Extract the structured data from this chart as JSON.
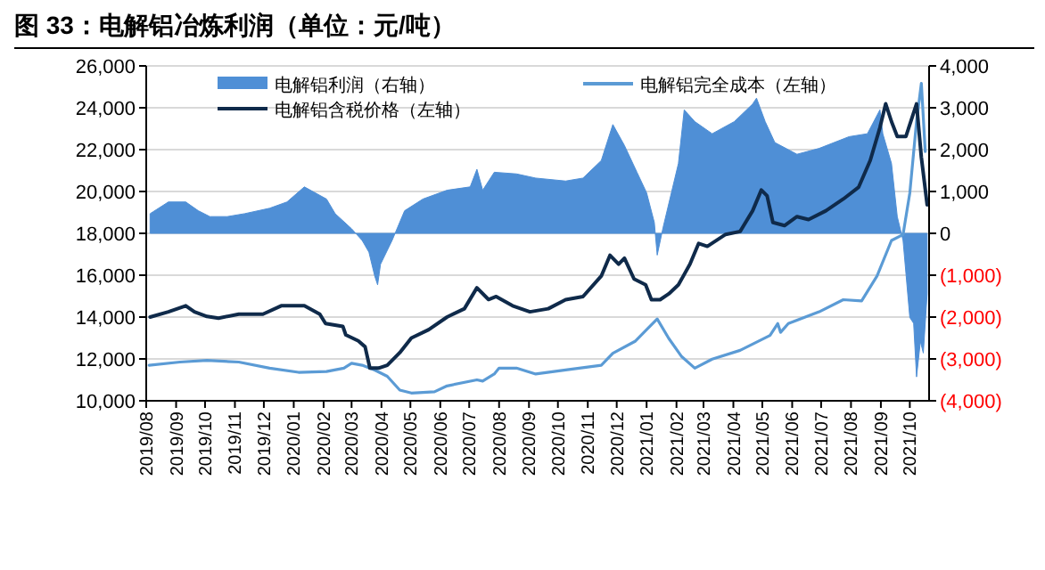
{
  "chart_data": {
    "type": "line",
    "title": "图 33：电解铝冶炼利润（单位：元/吨）",
    "xlim": [
      "2019-08-01",
      "2021-10-21"
    ],
    "xticks": [
      {
        "value": "2019-08",
        "label": "2019/08"
      },
      {
        "value": "2019-09",
        "label": "2019/09"
      },
      {
        "value": "2019-10",
        "label": "2019/10"
      },
      {
        "value": "2019-11",
        "label": "2019/11"
      },
      {
        "value": "2019-12",
        "label": "2019/12"
      },
      {
        "value": "2020-01",
        "label": "2020/01"
      },
      {
        "value": "2020-02",
        "label": "2020/02"
      },
      {
        "value": "2020-03",
        "label": "2020/03"
      },
      {
        "value": "2020-04",
        "label": "2020/04"
      },
      {
        "value": "2020-05",
        "label": "2020/05"
      },
      {
        "value": "2020-06",
        "label": "2020/06"
      },
      {
        "value": "2020-07",
        "label": "2020/07"
      },
      {
        "value": "2020-08",
        "label": "2020/08"
      },
      {
        "value": "2020-09",
        "label": "2020/09"
      },
      {
        "value": "2020-10",
        "label": "2020/10"
      },
      {
        "value": "2020-11",
        "label": "2020/11"
      },
      {
        "value": "2020-12",
        "label": "2020/12"
      },
      {
        "value": "2021-01",
        "label": "2021/01"
      },
      {
        "value": "2021-02",
        "label": "2021/02"
      },
      {
        "value": "2021-03",
        "label": "2021/03"
      },
      {
        "value": "2021-04",
        "label": "2021/04"
      },
      {
        "value": "2021-05",
        "label": "2021/05"
      },
      {
        "value": "2021-06",
        "label": "2021/06"
      },
      {
        "value": "2021-07",
        "label": "2021/07"
      },
      {
        "value": "2021-08",
        "label": "2021/08"
      },
      {
        "value": "2021-09",
        "label": "2021/09"
      },
      {
        "value": "2021-10",
        "label": "2021/10"
      }
    ],
    "ylim": [
      10000,
      26000
    ],
    "yticks": [
      {
        "value": 10000,
        "label": "10,000"
      },
      {
        "value": 12000,
        "label": "12,000"
      },
      {
        "value": 14000,
        "label": "14,000"
      },
      {
        "value": 16000,
        "label": "16,000"
      },
      {
        "value": 18000,
        "label": "18,000"
      },
      {
        "value": 20000,
        "label": "20,000"
      },
      {
        "value": 22000,
        "label": "22,000"
      },
      {
        "value": 24000,
        "label": "24,000"
      },
      {
        "value": 26000,
        "label": "26,000"
      }
    ],
    "y2lim": [
      -4000,
      4000
    ],
    "y2ticks": [
      {
        "value": -4000,
        "label": "(4,000)"
      },
      {
        "value": -3000,
        "label": "(3,000)"
      },
      {
        "value": -2000,
        "label": "(2,000)"
      },
      {
        "value": -1000,
        "label": "(1,000)"
      },
      0,
      {
        "value": 1000,
        "label": "1,000"
      },
      {
        "value": 2000,
        "label": "2,000"
      },
      {
        "value": 3000,
        "label": "3,000"
      },
      {
        "value": 4000,
        "label": "4,000"
      }
    ],
    "grid": "y",
    "legend": "top",
    "series": [
      {
        "name": "电解铝利润（右轴）",
        "type": "area",
        "axis": "y2",
        "color": "#4f8fd6",
        "x": [
          "2019-08-05",
          "2019-08-24",
          "2019-09-11",
          "2019-09-24",
          "2019-10-06",
          "2019-10-24",
          "2019-11-11",
          "2019-12-07",
          "2019-12-25",
          "2020-01-12",
          "2020-02-04",
          "2020-02-13",
          "2020-03-01",
          "2020-03-12",
          "2020-03-19",
          "2020-03-25",
          "2020-03-28",
          "2020-03-31",
          "2020-04-12",
          "2020-04-25",
          "2020-05-14",
          "2020-06-08",
          "2020-07-02",
          "2020-07-09",
          "2020-07-15",
          "2020-07-27",
          "2020-08-19",
          "2020-09-08",
          "2020-10-09",
          "2020-10-27",
          "2020-11-15",
          "2020-11-27",
          "2020-12-09",
          "2020-12-22",
          "2021-01-01",
          "2021-01-09",
          "2021-01-12",
          "2021-01-18",
          "2021-02-03",
          "2021-02-09",
          "2021-02-20",
          "2021-03-10",
          "2021-04-02",
          "2021-04-21",
          "2021-04-25",
          "2021-05-04",
          "2021-05-14",
          "2021-06-06",
          "2021-06-29",
          "2021-07-30",
          "2021-08-18",
          "2021-08-31",
          "2021-09-03",
          "2021-09-12",
          "2021-09-18",
          "2021-09-24",
          "2021-10-01",
          "2021-10-05",
          "2021-10-08",
          "2021-10-12",
          "2021-10-15",
          "2021-10-19"
        ],
        "values": [
          470,
          750,
          750,
          540,
          400,
          400,
          470,
          600,
          750,
          1110,
          820,
          470,
          110,
          -170,
          -450,
          -1020,
          -1230,
          -740,
          -170,
          540,
          820,
          1030,
          1110,
          1530,
          1030,
          1460,
          1420,
          1320,
          1250,
          1320,
          1740,
          2600,
          2100,
          1460,
          970,
          260,
          -520,
          130,
          1670,
          2950,
          2670,
          2380,
          2670,
          3090,
          3230,
          2670,
          2170,
          1890,
          2030,
          2310,
          2380,
          2950,
          2380,
          1670,
          400,
          -170,
          -2010,
          -2150,
          -3430,
          -2580,
          -2860,
          -1440
        ]
      },
      {
        "name": "电解铝完全成本（左轴）",
        "color": "#5b9bd5",
        "x": [
          "2019-08-04",
          "2019-09-05",
          "2019-10-03",
          "2019-11-05",
          "2019-12-07",
          "2020-01-06",
          "2020-02-04",
          "2020-02-22",
          "2020-03-01",
          "2020-03-12",
          "2020-03-25",
          "2020-04-07",
          "2020-04-20",
          "2020-05-02",
          "2020-05-26",
          "2020-06-08",
          "2020-07-09",
          "2020-07-15",
          "2020-07-27",
          "2020-08-01",
          "2020-08-19",
          "2020-09-08",
          "2020-10-09",
          "2020-11-15",
          "2020-11-27",
          "2020-12-20",
          "2021-01-01",
          "2021-01-12",
          "2021-01-24",
          "2021-02-06",
          "2021-02-20",
          "2021-03-10",
          "2021-04-08",
          "2021-05-09",
          "2021-05-17",
          "2021-05-20",
          "2021-05-28",
          "2021-06-29",
          "2021-07-24",
          "2021-08-12",
          "2021-08-28",
          "2021-09-12",
          "2021-09-24",
          "2021-10-01",
          "2021-10-08",
          "2021-10-13",
          "2021-10-17"
        ],
        "values": [
          11700,
          11850,
          11930,
          11850,
          11560,
          11360,
          11400,
          11560,
          11790,
          11700,
          11470,
          11170,
          10510,
          10370,
          10430,
          10710,
          11000,
          10940,
          11280,
          11560,
          11560,
          11280,
          11470,
          11700,
          12270,
          12840,
          13400,
          13910,
          12980,
          12130,
          11560,
          11990,
          12410,
          13120,
          13690,
          13270,
          13690,
          14250,
          14830,
          14770,
          15960,
          17660,
          17940,
          19930,
          23340,
          25170,
          21910
        ]
      },
      {
        "name": "电解铝含税价格（左轴）",
        "color": "#0f2a4a",
        "x": [
          "2019-08-05",
          "2019-08-24",
          "2019-09-11",
          "2019-09-20",
          "2019-10-03",
          "2019-10-15",
          "2019-11-05",
          "2019-11-30",
          "2019-12-19",
          "2020-01-12",
          "2020-01-28",
          "2020-02-03",
          "2020-02-21",
          "2020-02-24",
          "2020-03-08",
          "2020-03-15",
          "2020-03-20",
          "2020-03-29",
          "2020-04-07",
          "2020-04-20",
          "2020-05-02",
          "2020-05-20",
          "2020-06-08",
          "2020-06-26",
          "2020-07-09",
          "2020-07-21",
          "2020-07-29",
          "2020-08-15",
          "2020-09-02",
          "2020-09-21",
          "2020-10-09",
          "2020-10-27",
          "2020-11-15",
          "2020-11-24",
          "2020-12-03",
          "2020-12-09",
          "2020-12-19",
          "2020-12-31",
          "2021-01-06",
          "2021-01-15",
          "2021-01-24",
          "2021-02-03",
          "2021-02-15",
          "2021-02-24",
          "2021-03-05",
          "2021-03-24",
          "2021-04-08",
          "2021-04-21",
          "2021-04-30",
          "2021-05-06",
          "2021-05-12",
          "2021-05-24",
          "2021-06-06",
          "2021-06-18",
          "2021-07-06",
          "2021-07-24",
          "2021-08-09",
          "2021-08-21",
          "2021-08-31",
          "2021-09-06",
          "2021-09-12",
          "2021-09-18",
          "2021-09-27",
          "2021-10-08",
          "2021-10-13",
          "2021-10-19"
        ],
        "values": [
          14000,
          14250,
          14540,
          14250,
          14030,
          13950,
          14140,
          14140,
          14540,
          14540,
          14140,
          13690,
          13550,
          13150,
          12860,
          12580,
          11560,
          11560,
          11700,
          12300,
          13000,
          13400,
          14000,
          14400,
          15400,
          14840,
          14980,
          14540,
          14250,
          14400,
          14830,
          14980,
          15960,
          16950,
          16530,
          16810,
          15820,
          15540,
          14830,
          14830,
          15110,
          15540,
          16530,
          17520,
          17380,
          17950,
          18090,
          19080,
          20070,
          19790,
          18520,
          18370,
          18800,
          18660,
          19080,
          19640,
          20210,
          21490,
          23050,
          24190,
          23340,
          22630,
          22630,
          24190,
          21630,
          19360
        ]
      }
    ]
  }
}
